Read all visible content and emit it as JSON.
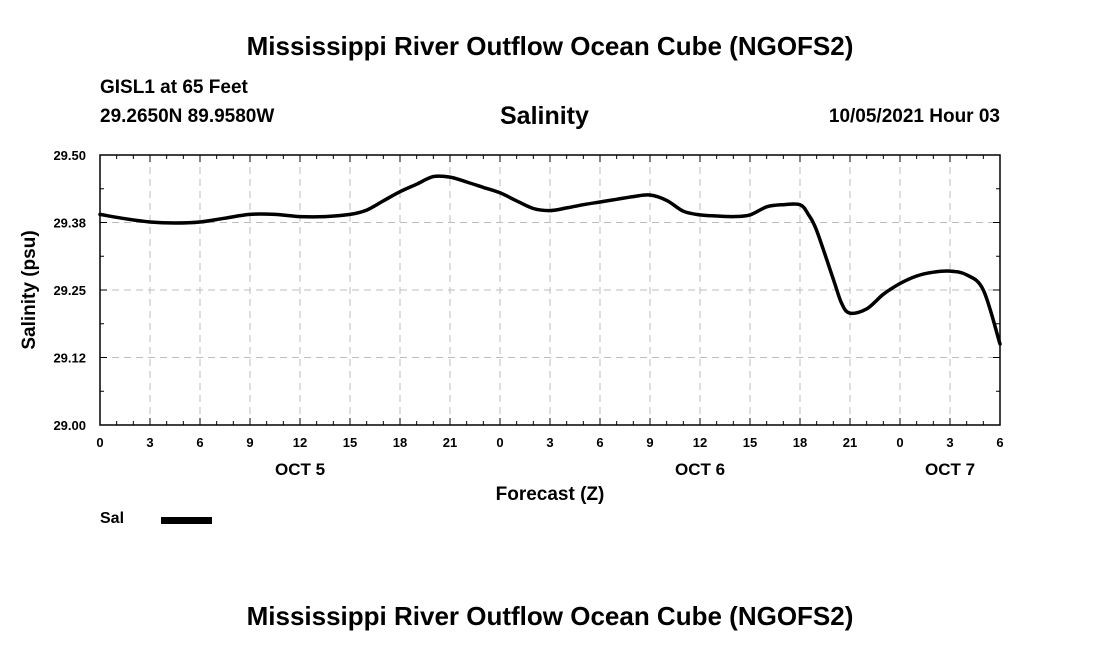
{
  "header": {
    "title": "Mississippi River Outflow Ocean Cube (NGOFS2)",
    "station": "GISL1 at 65 Feet",
    "coords": "29.2650N  89.9580W",
    "variable": "Salinity",
    "datetime": "10/05/2021 Hour 03"
  },
  "footer": {
    "title": "Mississippi River Outflow Ocean Cube (NGOFS2)"
  },
  "legend": {
    "label": "Sal",
    "color": "#000000"
  },
  "chart_data": {
    "type": "line",
    "title": "Salinity",
    "xlabel": "Forecast (Z)",
    "ylabel": "Salinity (psu)",
    "xlim": [
      0,
      54
    ],
    "ylim": [
      29.0,
      29.5
    ],
    "grid": true,
    "x_tick_values": [
      0,
      3,
      6,
      9,
      12,
      15,
      18,
      21,
      24,
      27,
      30,
      33,
      36,
      39,
      42,
      45,
      48,
      51,
      54
    ],
    "x_tick_labels": [
      "0",
      "3",
      "6",
      "9",
      "12",
      "15",
      "18",
      "21",
      "0",
      "3",
      "6",
      "9",
      "12",
      "15",
      "18",
      "21",
      "0",
      "3",
      "6"
    ],
    "date_labels": [
      {
        "x": 12,
        "label": "OCT 5"
      },
      {
        "x": 36,
        "label": "OCT 6"
      },
      {
        "x": 51,
        "label": "OCT 7"
      }
    ],
    "y_ticks": [
      29.0,
      29.125,
      29.25,
      29.375,
      29.5
    ],
    "y_tick_labels": [
      "29.00",
      "29.12",
      "29.25",
      "29.38",
      "29.50"
    ],
    "series": [
      {
        "name": "Sal",
        "x": [
          0,
          1.5,
          3,
          4.5,
          6,
          7.5,
          9,
          10.5,
          12,
          13.5,
          15,
          16,
          17,
          18,
          19,
          20,
          21,
          22,
          23,
          24,
          25,
          26,
          27,
          28,
          29,
          30,
          31,
          32,
          33,
          34,
          35,
          36,
          37,
          38,
          39,
          40,
          41,
          42,
          42.5,
          43,
          44,
          44.5,
          45,
          46,
          47,
          48,
          49,
          50,
          51,
          52,
          53,
          54
        ],
        "values": [
          29.39,
          29.382,
          29.376,
          29.374,
          29.376,
          29.383,
          29.39,
          29.39,
          29.386,
          29.386,
          29.39,
          29.398,
          29.415,
          29.432,
          29.446,
          29.46,
          29.459,
          29.45,
          29.44,
          29.43,
          29.415,
          29.401,
          29.397,
          29.402,
          29.408,
          29.413,
          29.418,
          29.423,
          29.426,
          29.416,
          29.396,
          29.389,
          29.387,
          29.386,
          29.389,
          29.404,
          29.408,
          29.408,
          29.39,
          29.36,
          29.27,
          29.225,
          29.207,
          29.215,
          29.242,
          29.262,
          29.276,
          29.283,
          29.285,
          29.278,
          29.25,
          29.15
        ]
      }
    ]
  }
}
